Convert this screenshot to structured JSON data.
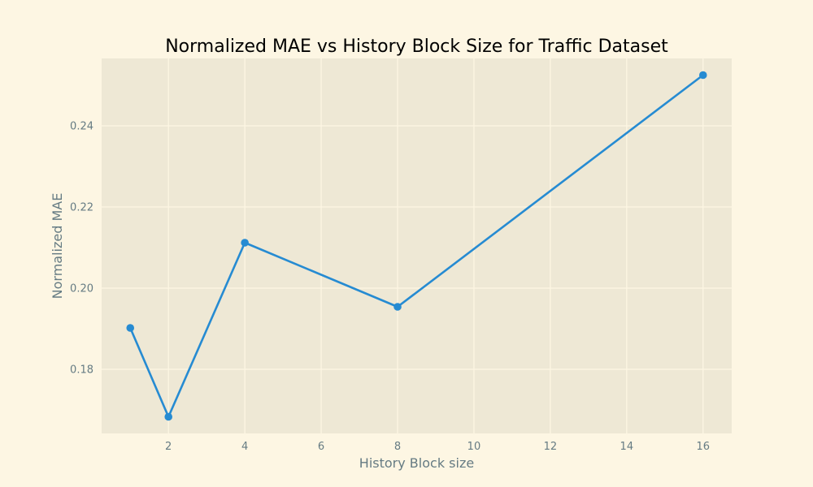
{
  "colors": {
    "page_background": "#fdf6e3",
    "plot_background": "#eee8d5",
    "grid": "#fdf6e3",
    "series": "#268bd2",
    "axis_text": "#657b83",
    "title_text": "#000000"
  },
  "chart_data": {
    "type": "line",
    "title": "Normalized MAE vs History Block Size for Traffic Dataset",
    "xlabel": "History Block size",
    "ylabel": "Normalized MAE",
    "grid": true,
    "legend": "none",
    "xlim": [
      0.25,
      16.75
    ],
    "ylim": [
      0.1642,
      0.2566
    ],
    "x_ticks": [
      2,
      4,
      6,
      8,
      10,
      12,
      14,
      16
    ],
    "y_ticks": [
      0.18,
      0.2,
      0.22,
      0.24
    ],
    "y_tick_labels": [
      "0.18",
      "0.20",
      "0.22",
      "0.24"
    ],
    "series": [
      {
        "x": [
          1,
          2,
          4,
          8,
          16
        ],
        "y": [
          0.1902,
          0.1683,
          0.2112,
          0.1954,
          0.2525
        ],
        "marker": "circle"
      }
    ]
  }
}
